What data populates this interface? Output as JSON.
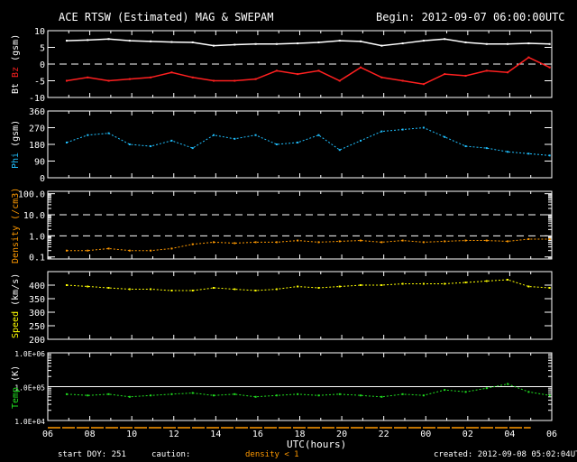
{
  "header": {
    "title": "ACE RTSW (Estimated) MAG & SWEPAM",
    "begin": "Begin: 2012-09-07 06:00:00UTC"
  },
  "footer": {
    "start_doy": "start DOY: 251",
    "caution": "caution:",
    "density_flag": "density < 1",
    "created": "created: 2012-09-08 05:02:04UTC",
    "xlabel": "UTC(hours)"
  },
  "colors": {
    "bt": "#ffffff",
    "bz": "#ff2020",
    "phi": "#20c0ff",
    "density": "#ff9900",
    "speed": "#ffff00",
    "temp": "#20e020"
  },
  "chart_data": [
    {
      "type": "line",
      "name": "mag",
      "ylabel_parts": [
        "Bt",
        "Bz",
        "(gsm)"
      ],
      "ylim": [
        -10,
        10
      ],
      "yticks": [
        "10",
        "5",
        "0",
        "-5",
        "-10"
      ],
      "reference": 0,
      "x": [
        0,
        1,
        2,
        3,
        4,
        5,
        6,
        7,
        8,
        9,
        10,
        11,
        12,
        13,
        14,
        15,
        16,
        17,
        18,
        19,
        20,
        21,
        22,
        23
      ],
      "series": [
        {
          "name": "Bt",
          "values": [
            7,
            7.2,
            7.5,
            7,
            6.8,
            6.6,
            6.5,
            5.5,
            5.8,
            6,
            6,
            6.2,
            6.5,
            7,
            6.8,
            5.5,
            6.2,
            7,
            7.5,
            6.5,
            6,
            6,
            6.2,
            6
          ]
        },
        {
          "name": "Bz",
          "values": [
            -5,
            -4,
            -5,
            -4.5,
            -4,
            -2.5,
            -4,
            -5,
            -5,
            -4.5,
            -2,
            -3,
            -2,
            -5,
            -1,
            -4,
            -5,
            -6,
            -3,
            -3.5,
            -2,
            -2.5,
            2,
            -1
          ]
        }
      ]
    },
    {
      "type": "scatter",
      "name": "phi",
      "ylabel_parts": [
        "Phi",
        "(gsm)"
      ],
      "ylim": [
        0,
        360
      ],
      "yticks": [
        "360",
        "270",
        "180",
        "90",
        "0"
      ],
      "x": [
        0,
        1,
        2,
        3,
        4,
        5,
        6,
        7,
        8,
        9,
        10,
        11,
        12,
        13,
        14,
        15,
        16,
        17,
        18,
        19,
        20,
        21,
        22,
        23
      ],
      "values": [
        190,
        230,
        240,
        180,
        170,
        200,
        160,
        230,
        210,
        230,
        180,
        190,
        230,
        150,
        200,
        250,
        260,
        270,
        220,
        170,
        160,
        140,
        130,
        120
      ]
    },
    {
      "type": "scatter",
      "name": "density",
      "ylabel_parts": [
        "Density",
        "(/cm3)"
      ],
      "yscale": "log",
      "ylim": [
        0.08,
        130
      ],
      "yticks": [
        "100.0",
        "10.0",
        "1.0",
        "0.1"
      ],
      "reference": [
        10,
        1
      ],
      "x": [
        0,
        1,
        2,
        3,
        4,
        5,
        6,
        7,
        8,
        9,
        10,
        11,
        12,
        13,
        14,
        15,
        16,
        17,
        18,
        19,
        20,
        21,
        22,
        23
      ],
      "values": [
        0.2,
        0.2,
        0.25,
        0.2,
        0.2,
        0.25,
        0.4,
        0.5,
        0.45,
        0.5,
        0.5,
        0.6,
        0.5,
        0.55,
        0.6,
        0.5,
        0.6,
        0.5,
        0.55,
        0.6,
        0.6,
        0.55,
        0.7,
        0.7
      ]
    },
    {
      "type": "scatter",
      "name": "speed",
      "ylabel_parts": [
        "Speed",
        "(km/s)"
      ],
      "ylim": [
        200,
        450
      ],
      "yticks": [
        "400",
        "350",
        "300",
        "250",
        "200"
      ],
      "x": [
        0,
        1,
        2,
        3,
        4,
        5,
        6,
        7,
        8,
        9,
        10,
        11,
        12,
        13,
        14,
        15,
        16,
        17,
        18,
        19,
        20,
        21,
        22,
        23
      ],
      "values": [
        400,
        395,
        390,
        385,
        385,
        380,
        380,
        390,
        385,
        380,
        385,
        395,
        390,
        395,
        400,
        400,
        405,
        405,
        405,
        410,
        415,
        420,
        395,
        390
      ]
    },
    {
      "type": "scatter",
      "name": "temp",
      "ylabel_parts": [
        "Temp",
        "(K)"
      ],
      "yscale": "log",
      "ylim": [
        10000,
        1000000
      ],
      "yticks": [
        "1.0E+06",
        "1.0E+05",
        "1.0E+04"
      ],
      "reference": 100000,
      "x": [
        0,
        1,
        2,
        3,
        4,
        5,
        6,
        7,
        8,
        9,
        10,
        11,
        12,
        13,
        14,
        15,
        16,
        17,
        18,
        19,
        20,
        21,
        22,
        23
      ],
      "values": [
        60000,
        55000,
        60000,
        50000,
        55000,
        60000,
        65000,
        55000,
        60000,
        50000,
        55000,
        60000,
        55000,
        60000,
        55000,
        50000,
        60000,
        55000,
        80000,
        70000,
        90000,
        120000,
        70000,
        55000
      ]
    }
  ],
  "xaxis": {
    "ticks": [
      "06",
      "08",
      "10",
      "12",
      "14",
      "16",
      "18",
      "20",
      "22",
      "00",
      "02",
      "04",
      "06"
    ],
    "range_hours": [
      0,
      24
    ]
  }
}
